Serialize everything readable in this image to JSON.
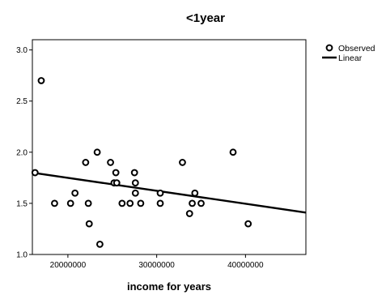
{
  "chart_data": {
    "type": "scatter",
    "title": "<1year",
    "xlabel": "income for years",
    "ylabel": "",
    "xlim": [
      16000000,
      46800000
    ],
    "ylim": [
      1.0,
      3.1
    ],
    "x_ticks": [
      20000000,
      30000000,
      40000000
    ],
    "x_tick_labels": [
      "20000000",
      "30000000",
      "40000000"
    ],
    "y_ticks": [
      1.0,
      1.5,
      2.0,
      2.5,
      3.0
    ],
    "y_tick_labels": [
      "1.0",
      "1.5",
      "2.0",
      "2.5",
      "3.0"
    ],
    "grid": false,
    "legend_position": "right",
    "series": [
      {
        "name": "Observed",
        "kind": "scatter",
        "marker": "open-circle",
        "color": "#000000",
        "points": [
          [
            16300000,
            1.8
          ],
          [
            17000000,
            2.7
          ],
          [
            18500000,
            1.5
          ],
          [
            20300000,
            1.5
          ],
          [
            20800000,
            1.6
          ],
          [
            22000000,
            1.9
          ],
          [
            22300000,
            1.5
          ],
          [
            22400000,
            1.3
          ],
          [
            23300000,
            2.0
          ],
          [
            23600000,
            1.1
          ],
          [
            24800000,
            1.9
          ],
          [
            25200000,
            1.7
          ],
          [
            25400000,
            1.8
          ],
          [
            25500000,
            1.7
          ],
          [
            26100000,
            1.5
          ],
          [
            27000000,
            1.5
          ],
          [
            27500000,
            1.8
          ],
          [
            27600000,
            1.6
          ],
          [
            27600000,
            1.7
          ],
          [
            28200000,
            1.5
          ],
          [
            30400000,
            1.6
          ],
          [
            30400000,
            1.5
          ],
          [
            32900000,
            1.9
          ],
          [
            33700000,
            1.4
          ],
          [
            34000000,
            1.5
          ],
          [
            34300000,
            1.6
          ],
          [
            35000000,
            1.5
          ],
          [
            38600000,
            2.0
          ],
          [
            40300000,
            1.3
          ]
        ]
      },
      {
        "name": "Linear",
        "kind": "line",
        "color": "#000000",
        "points": [
          [
            16000000,
            1.8
          ],
          [
            46800000,
            1.41
          ]
        ]
      }
    ]
  }
}
